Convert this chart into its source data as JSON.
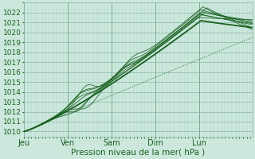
{
  "xlabel": "Pression niveau de la mer( hPa )",
  "bg_color": "#cce8dc",
  "plot_bg_color": "#cce8dc",
  "grid_color_minor": "#aad4c4",
  "grid_color_major": "#88b8a8",
  "line_color": "#1a6020",
  "ylim": [
    1009.5,
    1023.0
  ],
  "xlim": [
    0,
    125
  ],
  "yticks": [
    1010,
    1011,
    1012,
    1013,
    1014,
    1015,
    1016,
    1017,
    1018,
    1019,
    1020,
    1021,
    1022
  ],
  "day_labels": [
    "Jeu",
    "Ven",
    "Sam",
    "Dim",
    "Lun"
  ],
  "day_positions": [
    0,
    24,
    48,
    72,
    96
  ],
  "total_hours": 125
}
